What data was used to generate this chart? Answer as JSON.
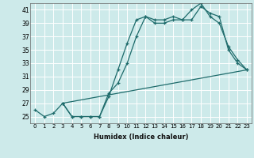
{
  "xlabel": "Humidex (Indice chaleur)",
  "bg_color": "#cdeaea",
  "grid_color": "#ffffff",
  "line_color": "#1e6b6b",
  "xlim": [
    -0.5,
    23.5
  ],
  "ylim": [
    24.0,
    42.0
  ],
  "xticks": [
    0,
    1,
    2,
    3,
    4,
    5,
    6,
    7,
    8,
    9,
    10,
    11,
    12,
    13,
    14,
    15,
    16,
    17,
    18,
    19,
    20,
    21,
    22,
    23
  ],
  "yticks": [
    25,
    27,
    29,
    31,
    33,
    35,
    37,
    39,
    41
  ],
  "line1_x": [
    0,
    1,
    2,
    3,
    4,
    5,
    6,
    7,
    8,
    9,
    10,
    11,
    12,
    13,
    14,
    15,
    16,
    17,
    18,
    19,
    20,
    21,
    22,
    23
  ],
  "line1_y": [
    26,
    25,
    25.5,
    27,
    25,
    25,
    25,
    25,
    28,
    32,
    36,
    39.5,
    40,
    39.5,
    39.5,
    40,
    39.5,
    39.5,
    41.5,
    40.5,
    40,
    35,
    33,
    32
  ],
  "line2_x": [
    3,
    23
  ],
  "line2_y": [
    27,
    32
  ],
  "line3_x": [
    3,
    4,
    5,
    6,
    7,
    8,
    9,
    10,
    11,
    12,
    13,
    14,
    15,
    16,
    17,
    18,
    19,
    20,
    21,
    22,
    23
  ],
  "line3_y": [
    27,
    25,
    25,
    25,
    25,
    28.5,
    30,
    33,
    37,
    40,
    39,
    39,
    39.5,
    39.5,
    41,
    42,
    40,
    39,
    35.5,
    33.5,
    32
  ]
}
